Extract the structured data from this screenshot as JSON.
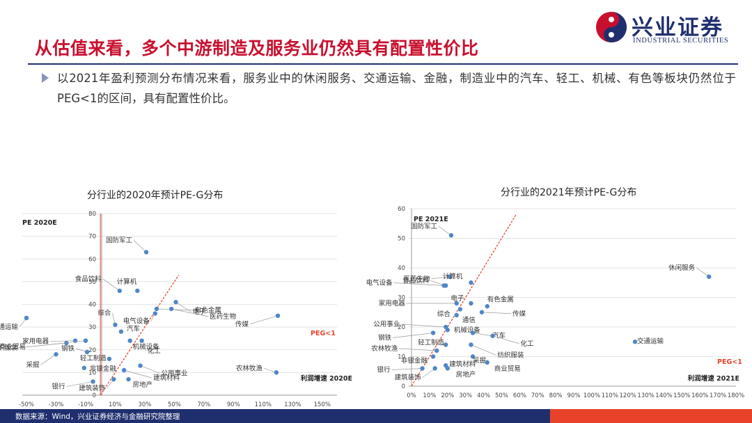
{
  "header": {
    "logo_cn": "兴业证券",
    "logo_en": "INDUSTRIAL SECURITIES",
    "title": "从估值来看，多个中游制造及服务业仍然具有配置性价比"
  },
  "body": {
    "text": "以2021年盈利预测分布情况来看，服务业中的休闲服务、交通运输、金融，制造业中的汽车、轻工、机械、有色等板块仍然位于PEG<1的区间，具有配置性价比。"
  },
  "footer": {
    "source": "数据来源：Wind，兴业证券经济与金融研究院整理"
  },
  "colors": {
    "title_red": "#c8102e",
    "navy": "#1f2f6e",
    "point": "#4f87c6",
    "peg_line": "#e8432a"
  },
  "chart_data": [
    {
      "type": "scatter",
      "title": "分行业的2020年预计PE-G分布",
      "ylabel": "PE 2020E",
      "xlabel": "利润增速 2020E",
      "x_ticks": [
        "-50%",
        "-30%",
        "-10%",
        "10%",
        "30%",
        "50%",
        "70%",
        "90%",
        "110%",
        "130%",
        "150%"
      ],
      "y_ticks": [
        "0",
        "10",
        "20",
        "30",
        "40",
        "50",
        "60",
        "70",
        "80"
      ],
      "xlim": [
        -50,
        160
      ],
      "ylim": [
        0,
        80
      ],
      "peg_label": "PEG<1",
      "points": [
        {
          "name": "交通运输",
          "x": -50,
          "y": 34
        },
        {
          "name": "家用电器",
          "x": -17,
          "y": 24
        },
        {
          "name": "纺织服装",
          "x": -23,
          "y": 23
        },
        {
          "name": "商业贸易",
          "x": -10,
          "y": 24
        },
        {
          "name": "采掘",
          "x": -30,
          "y": 18
        },
        {
          "name": "钢铁",
          "x": -9,
          "y": 19
        },
        {
          "name": "非银金融",
          "x": -11,
          "y": 12
        },
        {
          "name": "银行",
          "x": -5,
          "y": 6
        },
        {
          "name": "建筑装饰",
          "x": 9,
          "y": 7
        },
        {
          "name": "房地产",
          "x": 19,
          "y": 7
        },
        {
          "name": "轻工制造",
          "x": 6,
          "y": 16
        },
        {
          "name": "综合",
          "x": 10,
          "y": 31
        },
        {
          "name": "汽车",
          "x": 14,
          "y": 28
        },
        {
          "name": "食品饮料",
          "x": 13,
          "y": 46
        },
        {
          "name": "计算机",
          "x": 25,
          "y": 46
        },
        {
          "name": "国防军工",
          "x": 31,
          "y": 63
        },
        {
          "name": "机械设备",
          "x": 20,
          "y": 24
        },
        {
          "name": "化工",
          "x": 28,
          "y": 24
        },
        {
          "name": "公用事业",
          "x": 27,
          "y": 13
        },
        {
          "name": "建筑材料",
          "x": 16,
          "y": 11
        },
        {
          "name": "有色金属",
          "x": 38,
          "y": 38
        },
        {
          "name": "医药生物",
          "x": 48,
          "y": 38
        },
        {
          "name": "电子",
          "x": 51,
          "y": 41
        },
        {
          "name": "电气设备",
          "x": 37,
          "y": 36
        },
        {
          "name": "传媒",
          "x": 120,
          "y": 35
        },
        {
          "name": "农林牧渔",
          "x": 119,
          "y": 10
        }
      ]
    },
    {
      "type": "scatter",
      "title": "分行业的2021年预计PE-G分布",
      "ylabel": "PE 2021E",
      "xlabel": "利润增速 2021E",
      "x_ticks": [
        "0%",
        "10%",
        "20%",
        "30%",
        "40%",
        "50%",
        "60%",
        "70%",
        "80%",
        "90%",
        "100%",
        "110%",
        "120%",
        "130%",
        "140%",
        "150%",
        "160%",
        "170%",
        "180%"
      ],
      "y_ticks": [
        "0",
        "10",
        "20",
        "30",
        "40",
        "50",
        "60"
      ],
      "xlim": [
        0,
        180
      ],
      "ylim": [
        0,
        60
      ],
      "peg_label": "PEG<1",
      "points": [
        {
          "name": "国防军工",
          "x": 22,
          "y": 51
        },
        {
          "name": "食品饮料",
          "x": 19,
          "y": 34
        },
        {
          "name": "医药生物",
          "x": 21,
          "y": 37
        },
        {
          "name": "计算机",
          "x": 33,
          "y": 35
        },
        {
          "name": "电气设备",
          "x": 18,
          "y": 34
        },
        {
          "name": "电子",
          "x": 33,
          "y": 28
        },
        {
          "name": "有色金属",
          "x": 42,
          "y": 27
        },
        {
          "name": "家用电器",
          "x": 25,
          "y": 28
        },
        {
          "name": "综合",
          "x": 27,
          "y": 26
        },
        {
          "name": "通信",
          "x": 25,
          "y": 24
        },
        {
          "name": "传媒",
          "x": 39,
          "y": 25
        },
        {
          "name": "公用事业",
          "x": 19,
          "y": 20
        },
        {
          "name": "机械设备",
          "x": 20,
          "y": 19
        },
        {
          "name": "汽车",
          "x": 34,
          "y": 18
        },
        {
          "name": "钢铁",
          "x": 12,
          "y": 18
        },
        {
          "name": "轻工制造",
          "x": 19,
          "y": 14
        },
        {
          "name": "化工",
          "x": 45,
          "y": 17
        },
        {
          "name": "纺织服装",
          "x": 33,
          "y": 14
        },
        {
          "name": "农林牧渔",
          "x": 14,
          "y": 12
        },
        {
          "name": "非银金融",
          "x": 12,
          "y": 10
        },
        {
          "name": "采掘",
          "x": 34,
          "y": 10
        },
        {
          "name": "建筑材料",
          "x": 19,
          "y": 7
        },
        {
          "name": "银行",
          "x": 6,
          "y": 6
        },
        {
          "name": "建筑装饰",
          "x": 13,
          "y": 6
        },
        {
          "name": "房地产",
          "x": 20,
          "y": 6
        },
        {
          "name": "商业贸易",
          "x": 42,
          "y": 8
        },
        {
          "name": "交通运输",
          "x": 124,
          "y": 15
        },
        {
          "name": "休闲服务",
          "x": 165,
          "y": 37
        }
      ]
    }
  ]
}
